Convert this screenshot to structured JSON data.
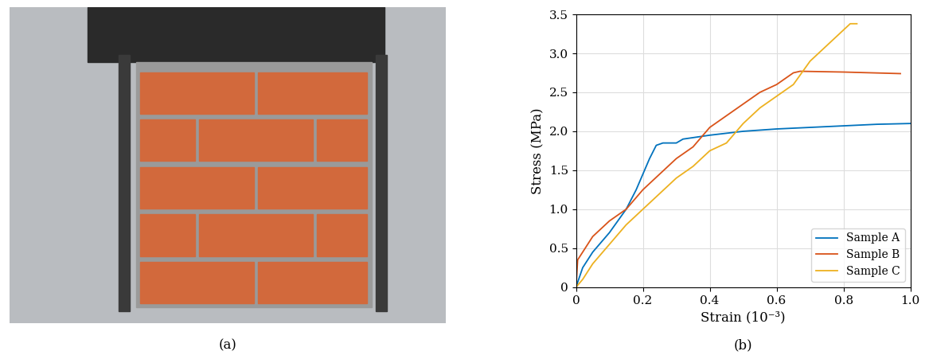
{
  "chart_data": {
    "type": "line",
    "x_label": "Strain (10⁻³)",
    "y_label": "Stress (MPa)",
    "xlim": [
      0,
      1
    ],
    "xticks": [
      0,
      0.2,
      0.4,
      0.6,
      0.8,
      {
        "value": 1,
        "label": "1.0"
      }
    ],
    "ylim": [
      0,
      3.5
    ],
    "yticks": [
      0,
      0.5,
      {
        "value": 1,
        "label": "1.0"
      },
      1.5,
      {
        "value": 2,
        "label": "2.0"
      },
      2.5,
      {
        "value": 3,
        "label": "3.0"
      },
      3.5
    ],
    "grid": true,
    "legend": "lower right",
    "series": [
      {
        "name": "Sample A",
        "color": "#0072BD",
        "x": [
          0,
          0.02,
          0.05,
          0.1,
          0.15,
          0.18,
          0.2,
          0.22,
          0.24,
          0.26,
          0.3,
          0.32,
          0.4,
          0.5,
          0.6,
          0.7,
          0.8,
          0.9,
          1.0
        ],
        "values": [
          0,
          0.25,
          0.45,
          0.7,
          1.0,
          1.25,
          1.45,
          1.65,
          1.82,
          1.85,
          1.85,
          1.9,
          1.95,
          2.0,
          2.03,
          2.05,
          2.07,
          2.09,
          2.1
        ]
      },
      {
        "name": "Sample B",
        "color": "#D95319",
        "x": [
          0,
          0.005,
          0.02,
          0.05,
          0.1,
          0.15,
          0.2,
          0.25,
          0.3,
          0.35,
          0.4,
          0.45,
          0.5,
          0.55,
          0.6,
          0.65,
          0.67,
          0.8,
          0.97
        ],
        "values": [
          0,
          0.35,
          0.45,
          0.65,
          0.85,
          1.0,
          1.25,
          1.45,
          1.65,
          1.8,
          2.05,
          2.2,
          2.35,
          2.5,
          2.6,
          2.75,
          2.77,
          2.76,
          2.74
        ]
      },
      {
        "name": "Sample C",
        "color": "#EDB120",
        "x": [
          0,
          0.02,
          0.05,
          0.1,
          0.15,
          0.2,
          0.25,
          0.3,
          0.35,
          0.4,
          0.45,
          0.5,
          0.55,
          0.6,
          0.65,
          0.7,
          0.75,
          0.8,
          0.82,
          0.84
        ],
        "values": [
          0,
          0.1,
          0.3,
          0.55,
          0.8,
          1.0,
          1.2,
          1.4,
          1.55,
          1.75,
          1.85,
          2.1,
          2.3,
          2.45,
          2.6,
          2.9,
          3.1,
          3.3,
          3.38,
          3.38
        ]
      }
    ]
  },
  "captions": [
    "(a)",
    "(b)"
  ]
}
